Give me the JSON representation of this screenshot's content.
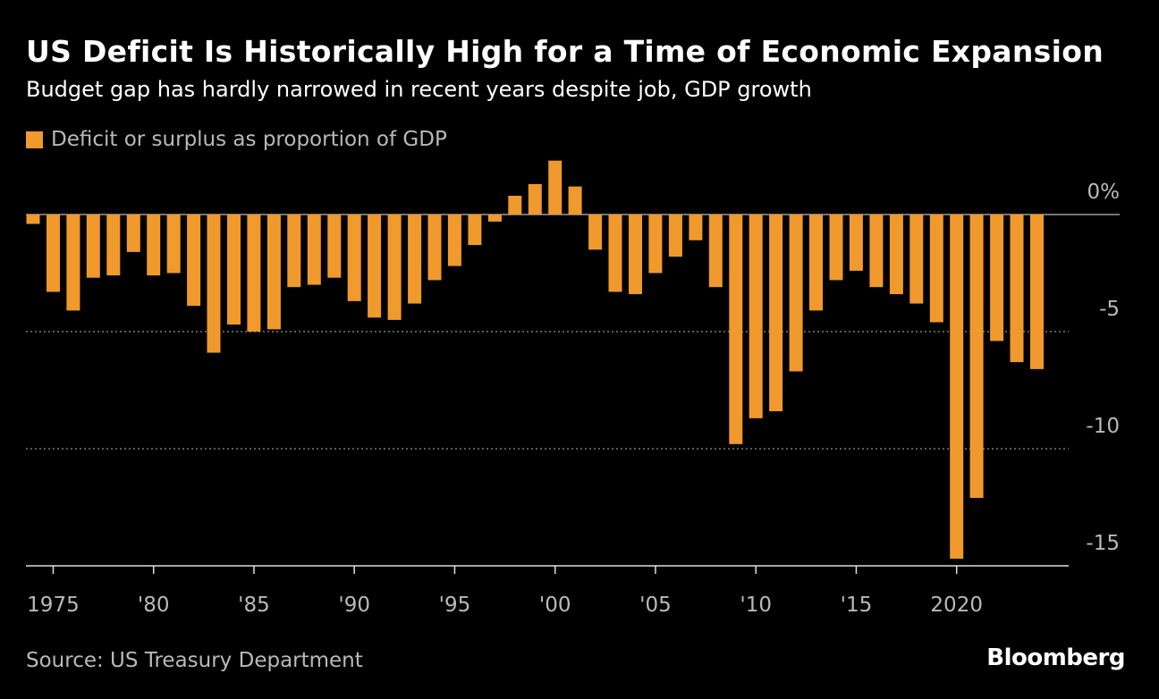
{
  "title": "US Deficit Is Historically High for a Time of Economic Expansion",
  "subtitle": "Budget gap has hardly narrowed in recent years despite job, GDP growth",
  "source": "Source: US Treasury Department",
  "brand": "Bloomberg",
  "colors": {
    "background": "#000000",
    "bar": "#f0992d",
    "text": "#ffffff",
    "muted": "#b9b9b9",
    "grid": "#7a7a7a"
  },
  "chart_data": {
    "type": "bar",
    "legend": [
      "Deficit or surplus as proportion of GDP"
    ],
    "legend_placement": "top-left",
    "x": [
      1974,
      1975,
      1976,
      1977,
      1978,
      1979,
      1980,
      1981,
      1982,
      1983,
      1984,
      1985,
      1986,
      1987,
      1988,
      1989,
      1990,
      1991,
      1992,
      1993,
      1994,
      1995,
      1996,
      1997,
      1998,
      1999,
      2000,
      2001,
      2002,
      2003,
      2004,
      2005,
      2006,
      2007,
      2008,
      2009,
      2010,
      2011,
      2012,
      2013,
      2014,
      2015,
      2016,
      2017,
      2018,
      2019,
      2020,
      2021,
      2022,
      2023,
      2024
    ],
    "series": [
      {
        "name": "Deficit or surplus as proportion of GDP",
        "values": [
          -0.4,
          -3.3,
          -4.1,
          -2.7,
          -2.6,
          -1.6,
          -2.6,
          -2.5,
          -3.9,
          -5.9,
          -4.7,
          -5.0,
          -4.9,
          -3.1,
          -3.0,
          -2.7,
          -3.7,
          -4.4,
          -4.5,
          -3.8,
          -2.8,
          -2.2,
          -1.3,
          -0.3,
          0.8,
          1.3,
          2.3,
          1.2,
          -1.5,
          -3.3,
          -3.4,
          -2.5,
          -1.8,
          -1.1,
          -3.1,
          -9.8,
          -8.7,
          -8.4,
          -6.7,
          -4.1,
          -2.8,
          -2.4,
          -3.1,
          -3.4,
          -3.8,
          -4.6,
          -14.7,
          -12.1,
          -5.4,
          -6.3,
          -6.6
        ]
      }
    ],
    "x_tick_labels": [
      {
        "x": 1975,
        "label": "1975"
      },
      {
        "x": 1980,
        "label": "'80"
      },
      {
        "x": 1985,
        "label": "'85"
      },
      {
        "x": 1990,
        "label": "'90"
      },
      {
        "x": 1995,
        "label": "'95"
      },
      {
        "x": 2000,
        "label": "'00"
      },
      {
        "x": 2005,
        "label": "'05"
      },
      {
        "x": 2010,
        "label": "'10"
      },
      {
        "x": 2015,
        "label": "'15"
      },
      {
        "x": 2020,
        "label": "2020"
      }
    ],
    "y_ticks": [
      {
        "value": 0,
        "label": "0%"
      },
      {
        "value": -5,
        "label": "-5"
      },
      {
        "value": -10,
        "label": "-10"
      },
      {
        "value": -15,
        "label": "-15"
      }
    ],
    "ylim": [
      -15,
      2.3
    ],
    "xlim": [
      1974,
      2024
    ],
    "grid": true,
    "ylabel": "",
    "xlabel": ""
  }
}
